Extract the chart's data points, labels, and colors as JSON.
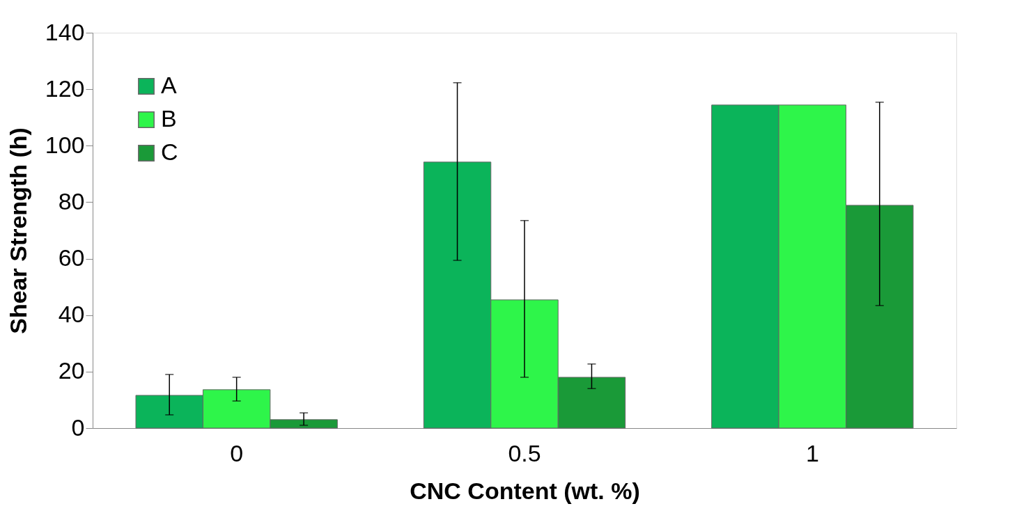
{
  "chart_data": {
    "type": "bar",
    "xlabel": "CNC Content (wt. %)",
    "ylabel": "Shear Strength (h)",
    "categories": [
      "0",
      "0.5",
      "1"
    ],
    "series": [
      {
        "name": "A",
        "color": "#0bb45a",
        "values": [
          11.6,
          94.2,
          114.4
        ],
        "errors": [
          [
            4.7,
            19
          ],
          [
            59.4,
            122.3
          ],
          null
        ]
      },
      {
        "name": "B",
        "color": "#2ef54a",
        "values": [
          13.6,
          45.4,
          114.4
        ],
        "errors": [
          [
            9.6,
            18
          ],
          [
            18,
            73.5
          ],
          null
        ]
      },
      {
        "name": "C",
        "color": "#1a9a38",
        "values": [
          3,
          18,
          78.9
        ],
        "errors": [
          [
            1,
            5.4
          ],
          [
            14,
            22.7
          ],
          [
            43.4,
            115.4
          ]
        ]
      }
    ],
    "ylim": [
      0,
      140
    ],
    "yticks": [
      0,
      20,
      40,
      60,
      80,
      100,
      120,
      140
    ],
    "grid": false,
    "legend": "top left"
  }
}
